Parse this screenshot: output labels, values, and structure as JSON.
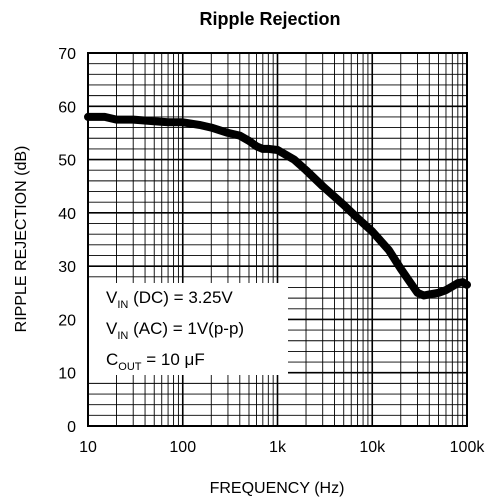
{
  "chart_data": {
    "type": "line",
    "title": "Ripple Rejection",
    "xlabel": "FREQUENCY (Hz)",
    "ylabel": "RIPPLE REJECTION (dB)",
    "x_scale": "log",
    "xlim": [
      10,
      100000
    ],
    "ylim": [
      0,
      70
    ],
    "grid": true,
    "x_ticks": [
      10,
      100,
      1000,
      10000,
      100000
    ],
    "x_tick_labels": [
      "10",
      "100",
      "1k",
      "10k",
      "100k"
    ],
    "y_ticks": [
      0,
      10,
      20,
      30,
      40,
      50,
      60,
      70
    ],
    "y_tick_labels": [
      "0",
      "10",
      "20",
      "30",
      "40",
      "50",
      "60",
      "70"
    ],
    "series": [
      {
        "color": "#000000",
        "x": [
          10,
          15,
          20,
          30,
          50,
          70,
          100,
          150,
          200,
          300,
          400,
          500,
          600,
          700,
          800,
          1000,
          1500,
          2000,
          3000,
          5000,
          7000,
          10000,
          15000,
          20000,
          25000,
          30000,
          35000,
          40000,
          50000,
          60000,
          70000,
          80000,
          90000,
          100000
        ],
        "y": [
          58,
          58,
          57.5,
          57.5,
          57.2,
          57,
          57,
          56.5,
          56,
          55,
          54.5,
          53.5,
          52.5,
          52,
          52,
          51.8,
          50,
          48,
          45,
          41.5,
          39,
          36.5,
          33,
          29.5,
          27,
          25,
          24.5,
          24.7,
          25,
          25.5,
          26.2,
          26.8,
          27,
          26.5
        ]
      }
    ],
    "annotations": [
      {
        "prefix": "V",
        "sub": "IN",
        "suffix": " (DC) = 3.25V"
      },
      {
        "prefix": "V",
        "sub": "IN",
        "suffix": " (AC) = 1V(p-p)"
      },
      {
        "prefix": "C",
        "sub": "OUT",
        "suffix": " = 10 μF"
      }
    ]
  }
}
